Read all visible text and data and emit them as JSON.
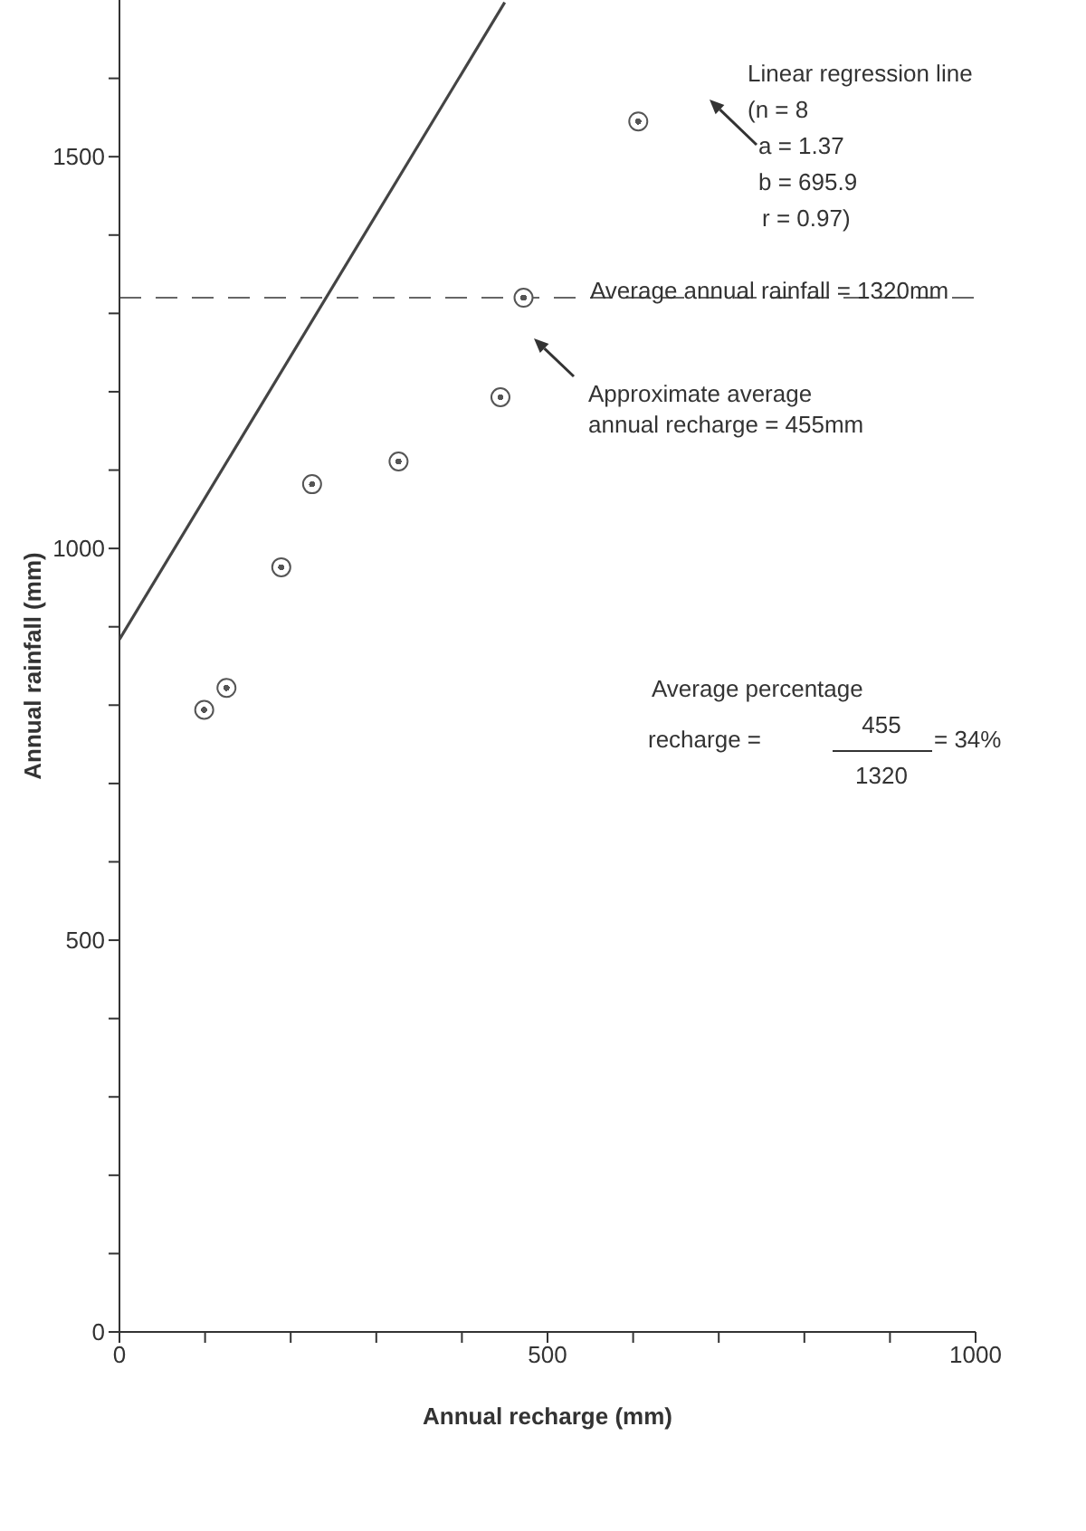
{
  "chart_data": {
    "type": "scatter",
    "xlabel": "Annual recharge (mm)",
    "ylabel": "Annual rainfall (mm)",
    "xlim": [
      0,
      1000
    ],
    "ylim": [
      0,
      1700
    ],
    "xticks": [
      0,
      {
        "value": 100,
        "label": null
      },
      {
        "value": 200,
        "label": null
      },
      {
        "value": 300,
        "label": null
      },
      {
        "value": 400,
        "label": null
      },
      500,
      {
        "value": 600,
        "label": null
      },
      {
        "value": 700,
        "label": null
      },
      {
        "value": 800,
        "label": null
      },
      {
        "value": 900,
        "label": null
      },
      1000
    ],
    "yticks": [
      0,
      {
        "value": 100,
        "label": null
      },
      {
        "value": 200,
        "label": null
      },
      {
        "value": 300,
        "label": null
      },
      {
        "value": 400,
        "label": null
      },
      500,
      {
        "value": 600,
        "label": null
      },
      {
        "value": 700,
        "label": null
      },
      {
        "value": 800,
        "label": null
      },
      {
        "value": 900,
        "label": null
      },
      1000,
      {
        "value": 1100,
        "label": null
      },
      {
        "value": 1200,
        "label": null
      },
      {
        "value": 1300,
        "label": null
      },
      {
        "value": 1400,
        "label": null
      },
      1500,
      {
        "value": 1600,
        "label": null
      }
    ],
    "grid": false,
    "legend": false,
    "series": [
      {
        "marker": "circle",
        "color": "#555555",
        "x": [
          99,
          125,
          189,
          225,
          326,
          445,
          472,
          606
        ],
        "values": [
          794,
          822,
          976,
          1082,
          1111,
          1193,
          1320,
          1545
        ]
      },
      {
        "type": "line",
        "marker": "none",
        "color": "#444444",
        "line_style": "solid",
        "x": [
          0,
          450
        ],
        "values": [
          884,
          1697
        ]
      }
    ],
    "ref_lines": [
      {
        "axis": "y",
        "value": 1320,
        "label": "Average annual rainfall = 1320mm",
        "color": "#666666",
        "line_style": "dashed"
      }
    ],
    "annotations": [
      "Linear regression line\n(n = 8\na = 1.37\nb = 695.9\nr = 0.97)",
      "Approximate average\nannual recharge = 455mm",
      "Average percentage\nrecharge =\n455\n1320\n= 34%"
    ]
  }
}
